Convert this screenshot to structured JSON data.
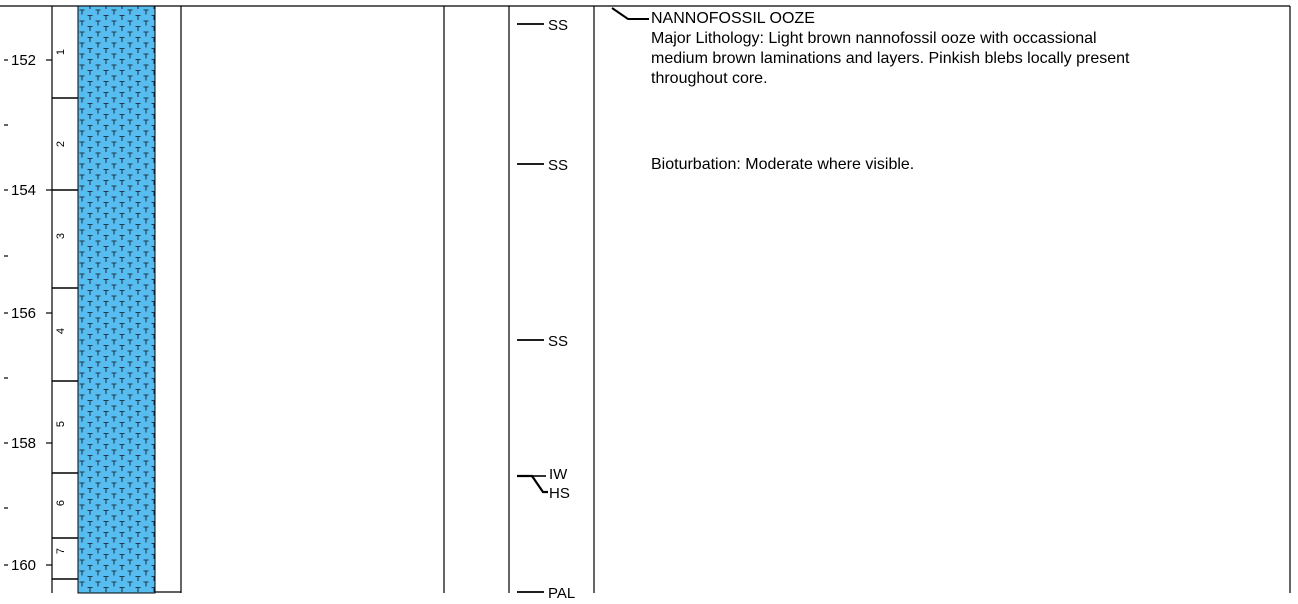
{
  "depth_axis": {
    "labels": [
      "152",
      "154",
      "156",
      "158",
      "160"
    ]
  },
  "sections": [
    "1",
    "2",
    "3",
    "4",
    "5",
    "6",
    "7"
  ],
  "lithology": {
    "name": "nannofossil ooze",
    "fill_color": "#57BDF0",
    "symbol_color": "#1F3A4C"
  },
  "samples": [
    "SS",
    "SS",
    "SS",
    "IW",
    "HS",
    "PAL"
  ],
  "description": {
    "heading": "NANNOFOSSIL OOZE",
    "major_lithology": [
      "Major Lithology:  Light brown nannofossil ooze with occassional",
      "medium brown laminations and layers.  Pinkish blebs locally present",
      "throughout core."
    ],
    "bioturbation": "Bioturbation: Moderate where visible."
  }
}
